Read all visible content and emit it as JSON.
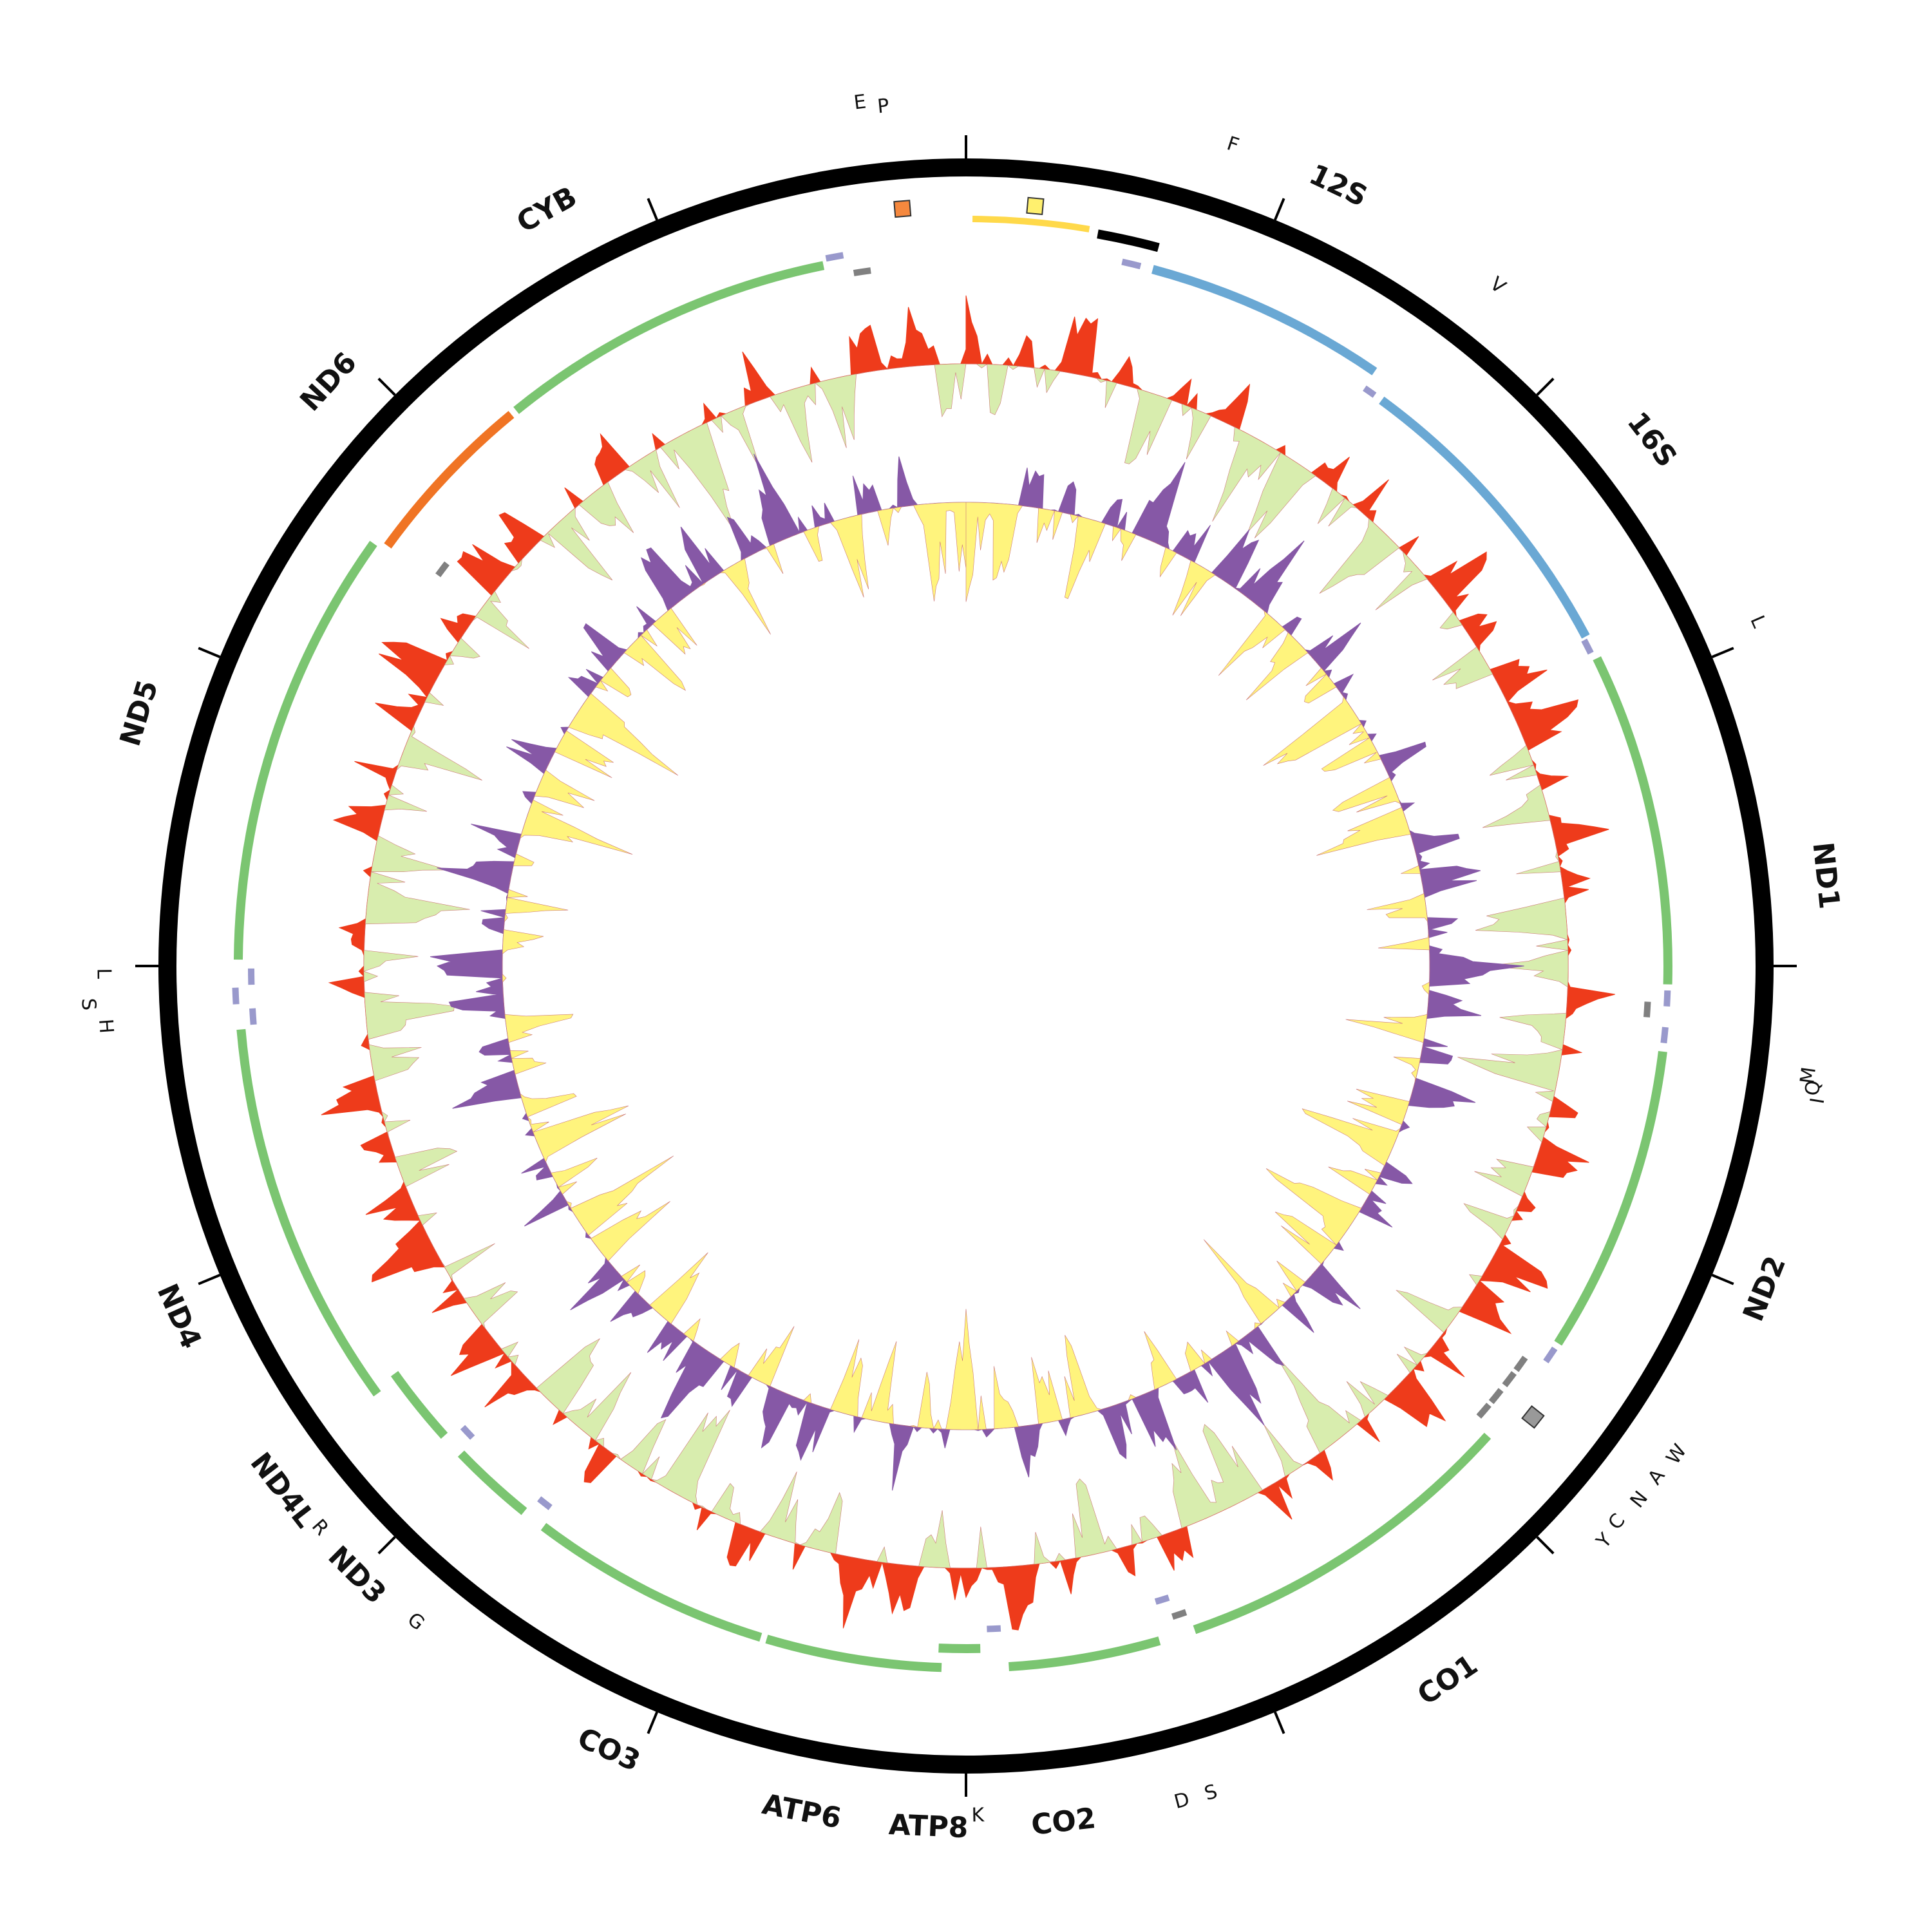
{
  "genome_map": {
    "gene_labels": [
      "F",
      "12S",
      "V",
      "16S",
      "L",
      "ND1",
      "I",
      "Q",
      "M",
      "ND2",
      "W",
      "A",
      "N",
      "C",
      "Y",
      "CO1",
      "S",
      "D",
      "CO2",
      "K",
      "ATP8",
      "ATP6",
      "CO3",
      "G",
      "ND3",
      "R",
      "ND4L",
      "ND4",
      "H",
      "S",
      "L",
      "ND5",
      "ND6",
      "CYB",
      "P",
      "E"
    ],
    "colors": {
      "backbone": "#000000",
      "protein_coding": "#7bc571",
      "rRNA": "#6aa8d4",
      "tRNA": "#9999cc",
      "tRNA_minus": "#808080",
      "control_region": "#ffe066",
      "nd6": "#f07424",
      "outer_positive": "#ee3b1b",
      "outer_negative": "#d8edae",
      "inner_positive": "#8658a6",
      "inner_negative": "#fff47d",
      "origin_marker_a": "#f5883e",
      "origin_marker_b": "#fff06e",
      "origin_marker_c": "#999999"
    }
  }
}
